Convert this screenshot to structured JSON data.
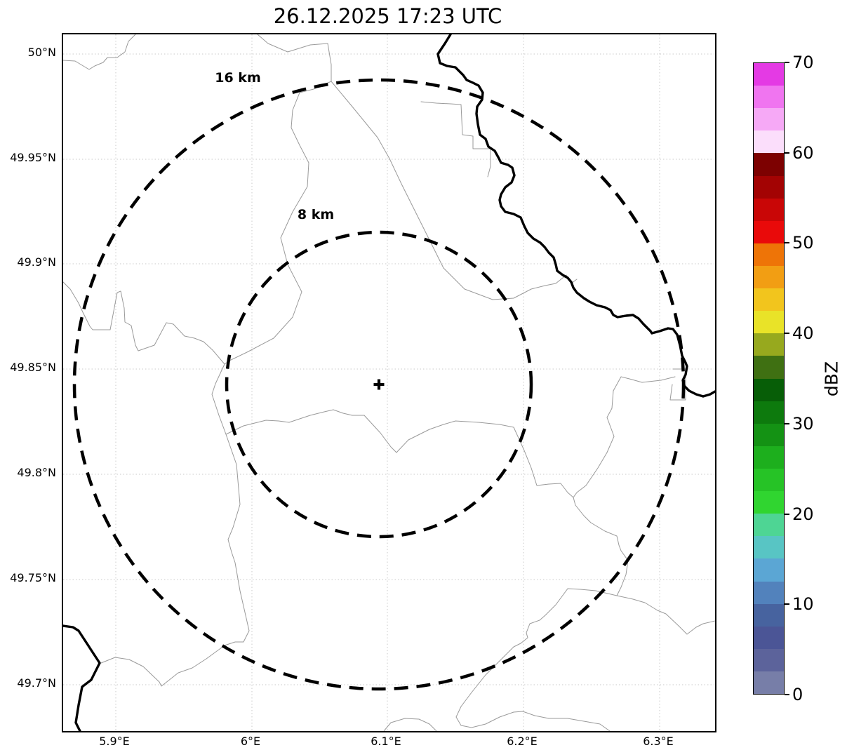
{
  "title": "26.12.2025 17:23 UTC",
  "map": {
    "x_tick_labels": [
      "5.9°E",
      "6°E",
      "6.1°E",
      "6.2°E",
      "6.3°E"
    ],
    "y_tick_labels": [
      "50°N",
      "49.95°N",
      "49.9°N",
      "49.85°N",
      "49.8°N",
      "49.75°N",
      "49.7°N"
    ],
    "range_rings": [
      {
        "label": "16 km"
      },
      {
        "label": "8 km"
      }
    ],
    "radar_marker_symbol": "+"
  },
  "colorbar": {
    "label": "dBZ",
    "tick_labels_top_to_bottom": [
      "70",
      "60",
      "50",
      "40",
      "30",
      "20",
      "10",
      "0"
    ],
    "value_min": 0,
    "value_max": 70,
    "segment_step_dbz": 2.5,
    "segment_colors_bottom_to_top": [
      "#777ea8",
      "#5c639b",
      "#4b5596",
      "#47639f",
      "#5282bc",
      "#5ba6d4",
      "#58c5c4",
      "#4ed594",
      "#30d530",
      "#26c326",
      "#1daf1d",
      "#149214",
      "#0d7a0d",
      "#075e07",
      "#3f7012",
      "#97a91e",
      "#e9e328",
      "#f2c51d",
      "#f29e13",
      "#ee7407",
      "#e90a0a",
      "#c90606",
      "#a30303",
      "#7d0101",
      "#fbdefb",
      "#f6a9f6",
      "#f075f0",
      "#e43ae4"
    ]
  },
  "style_colors": {
    "background": "#ffffff",
    "grid": "#c9c9c9",
    "admin_boundary_gray": "#9a9a9a",
    "border_black": "#000000"
  }
}
